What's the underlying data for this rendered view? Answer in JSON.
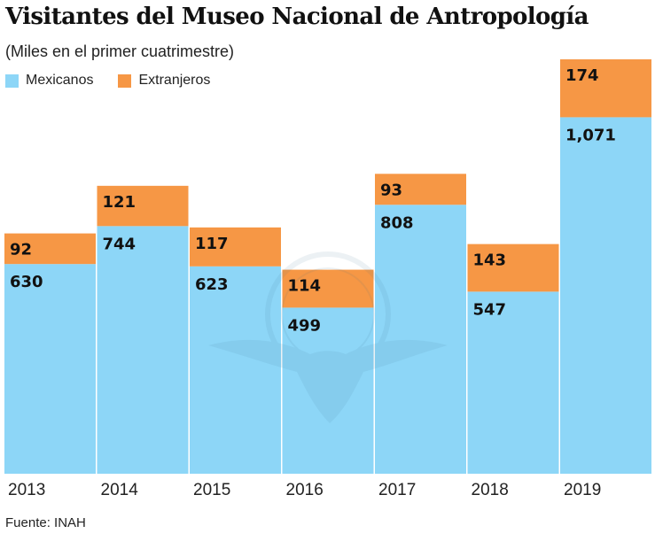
{
  "title": "Visitantes del Museo Nacional de Antropología",
  "subtitle": "(Miles en el primer cuatrimestre)",
  "source": "Fuente: INAH",
  "legend": [
    {
      "label": "Mexicanos",
      "color": "#8dd6f7"
    },
    {
      "label": "Extranjeros",
      "color": "#f69745"
    }
  ],
  "watermark": "eagle-globe-logo",
  "chart_data": {
    "type": "bar",
    "stacked": true,
    "title": "Visitantes del Museo Nacional de Antropología",
    "subtitle": "(Miles en el primer cuatrimestre)",
    "xlabel": "",
    "ylabel": "",
    "categories": [
      "2013",
      "2014",
      "2015",
      "2016",
      "2017",
      "2018",
      "2019"
    ],
    "series": [
      {
        "name": "Mexicanos",
        "color": "#8dd6f7",
        "values": [
          630,
          744,
          623,
          499,
          808,
          547,
          1071
        ],
        "labels": [
          "630",
          "744",
          "623",
          "499",
          "808",
          "547",
          "1,071"
        ]
      },
      {
        "name": "Extranjeros",
        "color": "#f69745",
        "values": [
          92,
          121,
          117,
          114,
          93,
          143,
          174
        ],
        "labels": [
          "92",
          "121",
          "117",
          "114",
          "93",
          "143",
          "174"
        ]
      }
    ],
    "ylim": [
      0,
      1245
    ],
    "grid": false,
    "legend_position": "top-left",
    "units": "miles"
  }
}
